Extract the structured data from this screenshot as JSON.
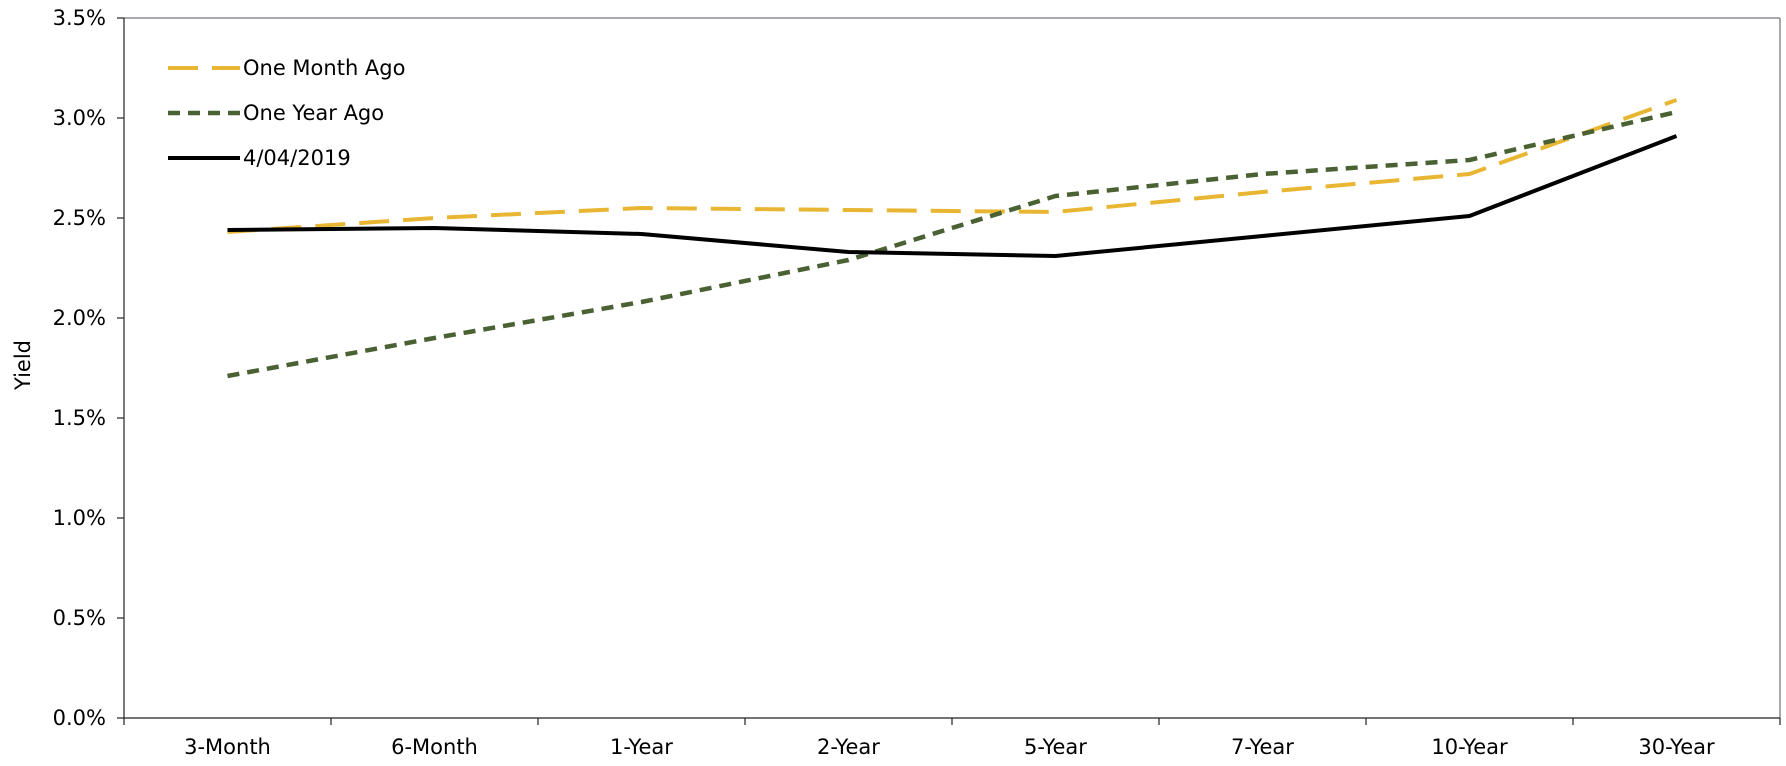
{
  "chart_data": {
    "type": "line",
    "title": "",
    "xlabel": "",
    "ylabel": "Yield",
    "categories": [
      "3-Month",
      "6-Month",
      "1-Year",
      "2-Year",
      "5-Year",
      "7-Year",
      "10-Year",
      "30-Year"
    ],
    "ylim": [
      0,
      0.035
    ],
    "y_ticks": [
      "0.0%",
      "0.5%",
      "1.0%",
      "1.5%",
      "2.0%",
      "2.5%",
      "3.0%",
      "3.5%"
    ],
    "grid": false,
    "legend_position": "top-left",
    "series": [
      {
        "name": "One Month Ago",
        "color": "#E8B632",
        "dash": "long-dash",
        "values": [
          0.0243,
          0.025,
          0.0255,
          0.0254,
          0.0253,
          0.0263,
          0.0272,
          0.0309
        ]
      },
      {
        "name": "One Year Ago",
        "color": "#4A6134",
        "dash": "short-dash",
        "values": [
          0.0171,
          0.019,
          0.0208,
          0.0229,
          0.0261,
          0.0272,
          0.0279,
          0.0303
        ]
      },
      {
        "name": "4/04/2019",
        "color": "#000000",
        "dash": "solid",
        "values": [
          0.0244,
          0.0245,
          0.0242,
          0.0233,
          0.0231,
          0.0241,
          0.0251,
          0.0291
        ]
      }
    ]
  }
}
